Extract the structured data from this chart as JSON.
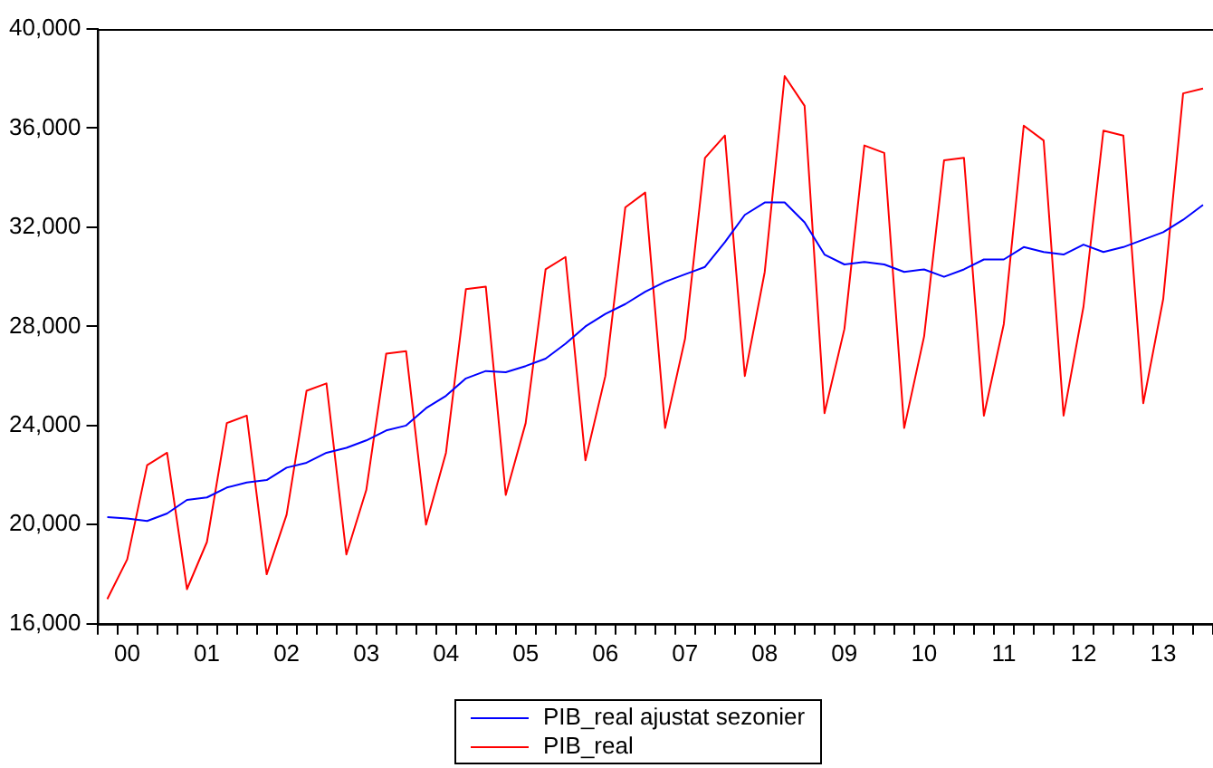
{
  "chart_data": {
    "type": "line",
    "categories": [
      null,
      "00",
      null,
      null,
      null,
      "01",
      null,
      null,
      null,
      "02",
      null,
      null,
      null,
      "03",
      null,
      null,
      null,
      "04",
      null,
      null,
      null,
      "05",
      null,
      null,
      null,
      "06",
      null,
      null,
      null,
      "07",
      null,
      null,
      null,
      "08",
      null,
      null,
      null,
      "09",
      null,
      null,
      null,
      "10",
      null,
      null,
      null,
      "11",
      null,
      null,
      null,
      "12",
      null,
      null,
      null,
      "13",
      null,
      null
    ],
    "series": [
      {
        "name": "PIB_real ajustat sezonier",
        "color": "#0000ff",
        "values": [
          20300,
          20250,
          20150,
          20450,
          21000,
          21100,
          21500,
          21700,
          21800,
          22300,
          22500,
          22900,
          23100,
          23400,
          23800,
          24000,
          24700,
          25200,
          25900,
          26200,
          26150,
          26400,
          26700,
          27300,
          28000,
          28500,
          28900,
          29400,
          29800,
          30100,
          30400,
          31400,
          32500,
          33000,
          33000,
          32200,
          30900,
          30500,
          30600,
          30500,
          30200,
          30300,
          30000,
          30300,
          30700,
          30700,
          31200,
          31000,
          30900,
          31300,
          31000,
          31200,
          31500,
          31800,
          32300,
          32900
        ]
      },
      {
        "name": "PIB_real",
        "color": "#ff0000",
        "values": [
          17000,
          18600,
          22400,
          22900,
          17400,
          19300,
          24100,
          24400,
          18000,
          20400,
          25400,
          25700,
          18800,
          21400,
          26900,
          27000,
          20000,
          22900,
          29500,
          29600,
          21200,
          24100,
          30300,
          30800,
          22600,
          26000,
          32800,
          33400,
          23900,
          27500,
          34800,
          35700,
          26000,
          30200,
          38100,
          36900,
          24500,
          27900,
          35300,
          35000,
          23900,
          27600,
          34700,
          34800,
          24400,
          28100,
          36100,
          35500,
          24400,
          28800,
          35900,
          35700,
          24900,
          29100,
          37400,
          37600
        ]
      }
    ],
    "ylim": [
      16000,
      40000
    ],
    "yticks": [
      {
        "value": 16000,
        "label": "16,000"
      },
      {
        "value": 20000,
        "label": "20,000"
      },
      {
        "value": 24000,
        "label": "24,000"
      },
      {
        "value": 28000,
        "label": "28,000"
      },
      {
        "value": 32000,
        "label": "32,000"
      },
      {
        "value": 36000,
        "label": "36,000"
      },
      {
        "value": 40000,
        "label": "40,000"
      }
    ],
    "grid": false,
    "legend": "bottom",
    "marker": "none",
    "line_style": "solid"
  }
}
